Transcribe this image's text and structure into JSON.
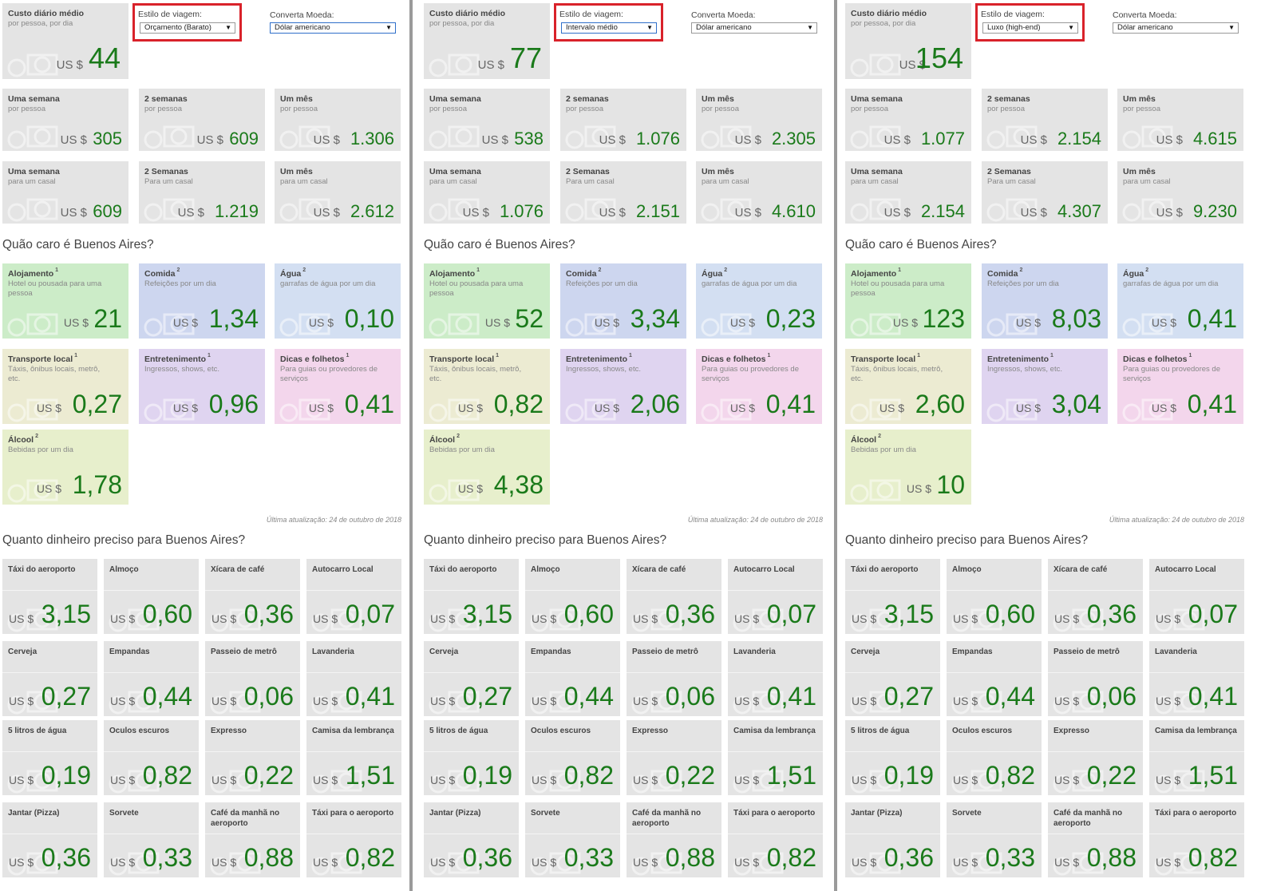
{
  "labels": {
    "daily_title": "Custo diário médio",
    "daily_sub": "por pessoa, por dia",
    "style_label": "Estilo de viagem:",
    "currency_label": "Converta Moeda:",
    "currency_value": "Dólar americano",
    "currency_prefix": "US $",
    "q_expensive": "Quão caro é Buenos Aires?",
    "q_money": "Quanto dinheiro preciso para Buenos Aires?",
    "updated": "Última atualização: 24 de outubro de 2018"
  },
  "durations": [
    {
      "title": "Uma semana",
      "sub": "por pessoa"
    },
    {
      "title": "2 semanas",
      "sub": "por pessoa"
    },
    {
      "title": "Um mês",
      "sub": "por pessoa"
    },
    {
      "title": "Uma semana",
      "sub": "para um casal"
    },
    {
      "title": "2 Semanas",
      "sub": "Para um casal"
    },
    {
      "title": "Um mês",
      "sub": "para um casal"
    }
  ],
  "categories": [
    {
      "title": "Alojamento",
      "sup": "1",
      "sub": "Hotel ou pousada para uma pessoa",
      "color": "#ccecc8"
    },
    {
      "title": "Comida",
      "sup": "2",
      "sub": "Refeições por um dia",
      "color": "#cdd6ef"
    },
    {
      "title": "Água",
      "sup": "2",
      "sub": "garrafas de água por um dia",
      "color": "#d3dff2"
    },
    {
      "title": "Transporte local",
      "sup": "1",
      "sub": "Táxis, ônibus locais, metrô, etc.",
      "color": "#ecebd2"
    },
    {
      "title": "Entretenimento",
      "sup": "1",
      "sub": "Ingressos, shows, etc.",
      "color": "#dfd4f0"
    },
    {
      "title": "Dicas e folhetos",
      "sup": "1",
      "sub": "Para guias ou provedores de serviços",
      "color": "#f3d6ec"
    },
    {
      "title": "Álcool",
      "sup": "2",
      "sub": "Bebidas por um dia",
      "color": "#e7efcc"
    }
  ],
  "items": [
    {
      "title": "Táxi do aeroporto",
      "value": "3,15"
    },
    {
      "title": "Almoço",
      "value": "0,60"
    },
    {
      "title": "Xícara de café",
      "value": "0,36"
    },
    {
      "title": "Autocarro Local",
      "value": "0,07"
    },
    {
      "title": "Cerveja",
      "value": "0,27"
    },
    {
      "title": "Empandas",
      "value": "0,44"
    },
    {
      "title": "Passeio de metrô",
      "value": "0,06"
    },
    {
      "title": "Lavanderia",
      "value": "0,41"
    },
    {
      "title": "5 litros de água",
      "value": "0,19"
    },
    {
      "title": "Oculos escuros",
      "value": "0,82"
    },
    {
      "title": "Expresso",
      "value": "0,22"
    },
    {
      "title": "Camisa da lembrança",
      "value": "1,51"
    },
    {
      "title": "Jantar (Pizza)",
      "value": "0,36"
    },
    {
      "title": "Sorvete",
      "value": "0,33"
    },
    {
      "title": "Café da manhã no aeroporto",
      "value": "0,88"
    },
    {
      "title": "Táxi para o aeroporto",
      "value": "0,82"
    }
  ],
  "panels": [
    {
      "style": "Orçamento (Barato)",
      "daily": "44",
      "durations": [
        "305",
        "609",
        "1.306",
        "609",
        "1.219",
        "2.612"
      ],
      "categories": [
        "21",
        "1,34",
        "0,10",
        "0,27",
        "0,96",
        "0,41",
        "1,78"
      ]
    },
    {
      "style": "Intervalo médio",
      "daily": "77",
      "durations": [
        "538",
        "1.076",
        "2.305",
        "1.076",
        "2.151",
        "4.610"
      ],
      "categories": [
        "52",
        "3,34",
        "0,23",
        "0,82",
        "2,06",
        "0,41",
        "4,38"
      ]
    },
    {
      "style": "Luxo (high-end)",
      "daily": "154",
      "durations": [
        "1.077",
        "2.154",
        "4.615",
        "2.154",
        "4.307",
        "9.230"
      ],
      "categories": [
        "123",
        "8,03",
        "0,41",
        "2,60",
        "3,04",
        "0,41",
        "10"
      ]
    }
  ],
  "colors": {
    "value_green": "#1a7a1a",
    "highlight_red": "#d9222a",
    "tile_grey": "#e4e4e4"
  }
}
